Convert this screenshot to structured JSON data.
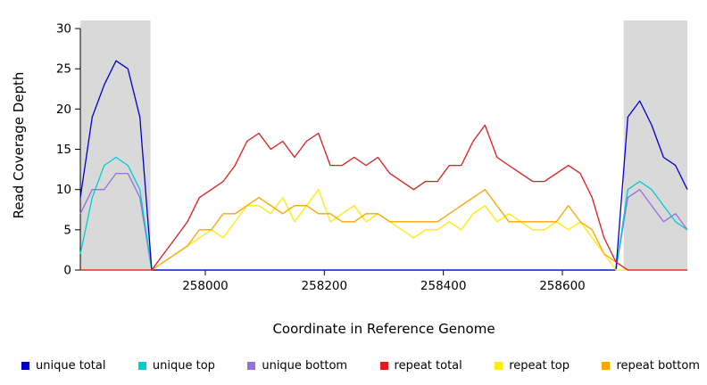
{
  "chart_data": {
    "type": "line",
    "title": "",
    "xlabel": "Coordinate in Reference Genome",
    "ylabel": "Read Coverage Depth",
    "xlim": [
      257790,
      258810
    ],
    "ylim": [
      0,
      31
    ],
    "xticks": [
      258000,
      258200,
      258400,
      258600
    ],
    "yticks": [
      0,
      5,
      10,
      15,
      20,
      25,
      30
    ],
    "grid": false,
    "legend_position": "bottom",
    "shade_color": "#d9d9d9",
    "shaded_regions": [
      {
        "x0": 257790,
        "x1": 257908
      },
      {
        "x0": 258703,
        "x1": 258810
      }
    ],
    "x": [
      257790,
      257810,
      257830,
      257850,
      257870,
      257890,
      257910,
      257930,
      257950,
      257970,
      257990,
      258010,
      258030,
      258050,
      258070,
      258090,
      258110,
      258130,
      258150,
      258170,
      258190,
      258210,
      258230,
      258250,
      258270,
      258290,
      258310,
      258330,
      258350,
      258370,
      258390,
      258410,
      258430,
      258450,
      258470,
      258490,
      258510,
      258530,
      258550,
      258570,
      258590,
      258610,
      258630,
      258650,
      258670,
      258690,
      258710,
      258730,
      258750,
      258770,
      258790,
      258810
    ],
    "series": [
      {
        "name": "unique total",
        "color": "#0000cd",
        "values": [
          9,
          19,
          23,
          26,
          25,
          19,
          0,
          0,
          0,
          0,
          0,
          0,
          0,
          0,
          0,
          0,
          0,
          0,
          0,
          0,
          0,
          0,
          0,
          0,
          0,
          0,
          0,
          0,
          0,
          0,
          0,
          0,
          0,
          0,
          0,
          0,
          0,
          0,
          0,
          0,
          0,
          0,
          0,
          0,
          0,
          0,
          19,
          21,
          18,
          14,
          13,
          10
        ]
      },
      {
        "name": "unique top",
        "color": "#00cdcd",
        "values": [
          2,
          9,
          13,
          14,
          13,
          10,
          0,
          0,
          0,
          0,
          0,
          0,
          0,
          0,
          0,
          0,
          0,
          0,
          0,
          0,
          0,
          0,
          0,
          0,
          0,
          0,
          0,
          0,
          0,
          0,
          0,
          0,
          0,
          0,
          0,
          0,
          0,
          0,
          0,
          0,
          0,
          0,
          0,
          0,
          0,
          0,
          10,
          11,
          10,
          8,
          6,
          5
        ]
      },
      {
        "name": "unique bottom",
        "color": "#9370db",
        "values": [
          7,
          10,
          10,
          12,
          12,
          9,
          0,
          0,
          0,
          0,
          0,
          0,
          0,
          0,
          0,
          0,
          0,
          0,
          0,
          0,
          0,
          0,
          0,
          0,
          0,
          0,
          0,
          0,
          0,
          0,
          0,
          0,
          0,
          0,
          0,
          0,
          0,
          0,
          0,
          0,
          0,
          0,
          0,
          0,
          0,
          0,
          9,
          10,
          8,
          6,
          7,
          5
        ]
      },
      {
        "name": "repeat total",
        "color": "#e41a1c",
        "values": [
          0,
          0,
          0,
          0,
          0,
          0,
          0,
          2,
          4,
          6,
          9,
          10,
          11,
          13,
          16,
          17,
          15,
          16,
          14,
          16,
          17,
          13,
          13,
          14,
          13,
          14,
          12,
          11,
          10,
          11,
          11,
          13,
          13,
          16,
          18,
          14,
          13,
          12,
          11,
          11,
          12,
          13,
          12,
          9,
          4,
          1,
          0,
          0,
          0,
          0,
          0,
          0
        ]
      },
      {
        "name": "repeat top",
        "color": "#ffee00",
        "values": [
          0,
          0,
          0,
          0,
          0,
          0,
          0,
          1,
          2,
          3,
          4,
          5,
          4,
          6,
          8,
          8,
          7,
          9,
          6,
          8,
          10,
          6,
          7,
          8,
          6,
          7,
          6,
          5,
          4,
          5,
          5,
          6,
          5,
          7,
          8,
          6,
          7,
          6,
          5,
          5,
          6,
          5,
          6,
          4,
          2,
          0,
          0,
          0,
          0,
          0,
          0,
          0
        ]
      },
      {
        "name": "repeat bottom",
        "color": "#ffa500",
        "values": [
          0,
          0,
          0,
          0,
          0,
          0,
          0,
          1,
          2,
          3,
          5,
          5,
          7,
          7,
          8,
          9,
          8,
          7,
          8,
          8,
          7,
          7,
          6,
          6,
          7,
          7,
          6,
          6,
          6,
          6,
          6,
          7,
          8,
          9,
          10,
          8,
          6,
          6,
          6,
          6,
          6,
          8,
          6,
          5,
          2,
          1,
          0,
          0,
          0,
          0,
          0,
          0
        ]
      }
    ]
  }
}
